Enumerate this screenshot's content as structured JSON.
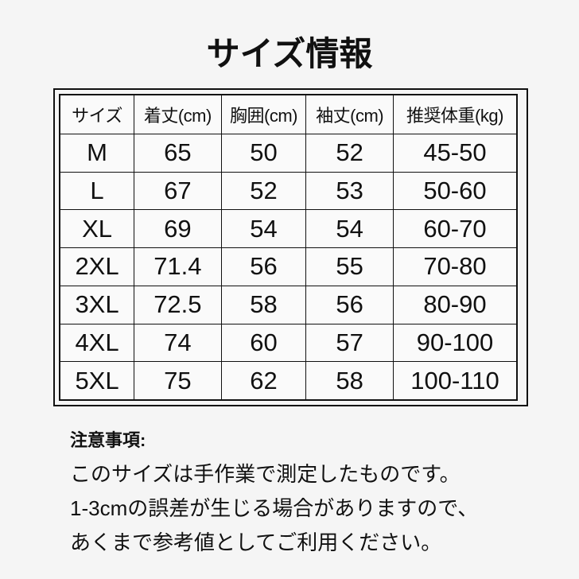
{
  "header": {
    "title": "サイズ情報"
  },
  "table": {
    "columns": [
      "サイズ",
      "着丈(cm)",
      "胸囲(cm)",
      "袖丈(cm)",
      "推奨体重(kg)"
    ],
    "rows": [
      [
        "M",
        "65",
        "50",
        "52",
        "45-50"
      ],
      [
        "L",
        "67",
        "52",
        "53",
        "50-60"
      ],
      [
        "XL",
        "69",
        "54",
        "54",
        "60-70"
      ],
      [
        "2XL",
        "71.4",
        "56",
        "55",
        "70-80"
      ],
      [
        "3XL",
        "72.5",
        "58",
        "56",
        "80-90"
      ],
      [
        "4XL",
        "74",
        "60",
        "57",
        "90-100"
      ],
      [
        "5XL",
        "75",
        "62",
        "58",
        "100-110"
      ]
    ]
  },
  "notes": {
    "title": "注意事項:",
    "lines": [
      "このサイズは手作業で測定したものです。",
      "1-3cmの誤差が生じる場合がありますので、",
      "あくまで参考値としてご利用ください。"
    ]
  }
}
